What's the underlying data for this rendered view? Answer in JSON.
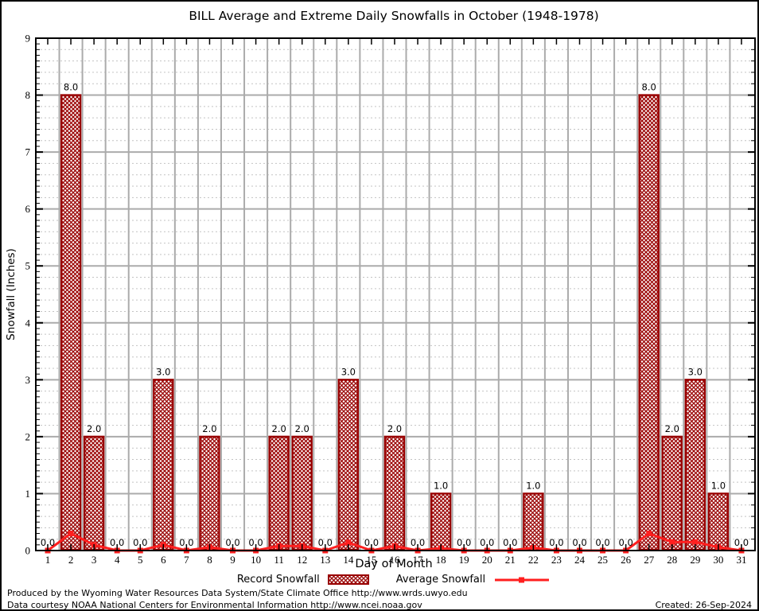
{
  "chart": {
    "title": "BILL Average and Extreme Daily Snowfalls in October (1948-1978)",
    "xlabel": "Day of Month",
    "ylabel": "Snowfall (Inches)"
  },
  "chart_data": {
    "type": "bar",
    "x": [
      1,
      2,
      3,
      4,
      5,
      6,
      7,
      8,
      9,
      10,
      11,
      12,
      13,
      14,
      15,
      16,
      17,
      18,
      19,
      20,
      21,
      22,
      23,
      24,
      25,
      26,
      27,
      28,
      29,
      30,
      31
    ],
    "series": [
      {
        "name": "Record Snowfall",
        "type": "bar",
        "values": [
          0,
          8,
          2,
          0,
          0,
          3,
          0,
          2,
          0,
          0,
          2,
          2,
          0,
          3,
          0,
          2,
          0,
          1,
          0,
          0,
          0,
          1,
          0,
          0,
          0,
          0,
          8,
          2,
          3,
          1,
          0
        ]
      },
      {
        "name": "Average Snowfall",
        "type": "line",
        "values": [
          0,
          0.3,
          0.1,
          0,
          0,
          0.1,
          0,
          0.06,
          0,
          0,
          0.08,
          0.08,
          0,
          0.14,
          0,
          0.08,
          0,
          0.04,
          0,
          0,
          0,
          0.05,
          0,
          0,
          0,
          0,
          0.3,
          0.15,
          0.15,
          0.06,
          0
        ]
      }
    ],
    "value_labels": [
      "0.0",
      "8.0",
      "2.0",
      "0.0",
      "0.0",
      "3.0",
      "0.0",
      "2.0",
      "0.0",
      "0.0",
      "2.0",
      "2.0",
      "0.0",
      "3.0",
      "0.0",
      "2.0",
      "0.0",
      "1.0",
      "0.0",
      "0.0",
      "0.0",
      "1.0",
      "0.0",
      "0.0",
      "0.0",
      "0.0",
      "8.0",
      "2.0",
      "3.0",
      "1.0",
      "0.0"
    ],
    "y_ticks": [
      0,
      1,
      2,
      3,
      4,
      5,
      6,
      7,
      8,
      9
    ],
    "ylim": [
      0,
      9
    ],
    "grid": "major solid + minor dotted",
    "legend_position": "bottom center"
  },
  "colors": {
    "record_bar": "#990000",
    "average_line": "#ff1f1f",
    "grid_major": "#ababab",
    "grid_minor": "#c3c3c3",
    "axis": "#000000"
  },
  "legend": {
    "record_label": "Record Snowfall",
    "average_label": "Average Snowfall"
  },
  "footer": {
    "line1": "Produced by the Wyoming Water Resources Data System/State Climate Office http://www.wrds.uwyo.edu",
    "line2": "Data courtesy NOAA National Centers for Environmental Information http://www.ncei.noaa.gov",
    "created": "Created: 26-Sep-2024"
  }
}
